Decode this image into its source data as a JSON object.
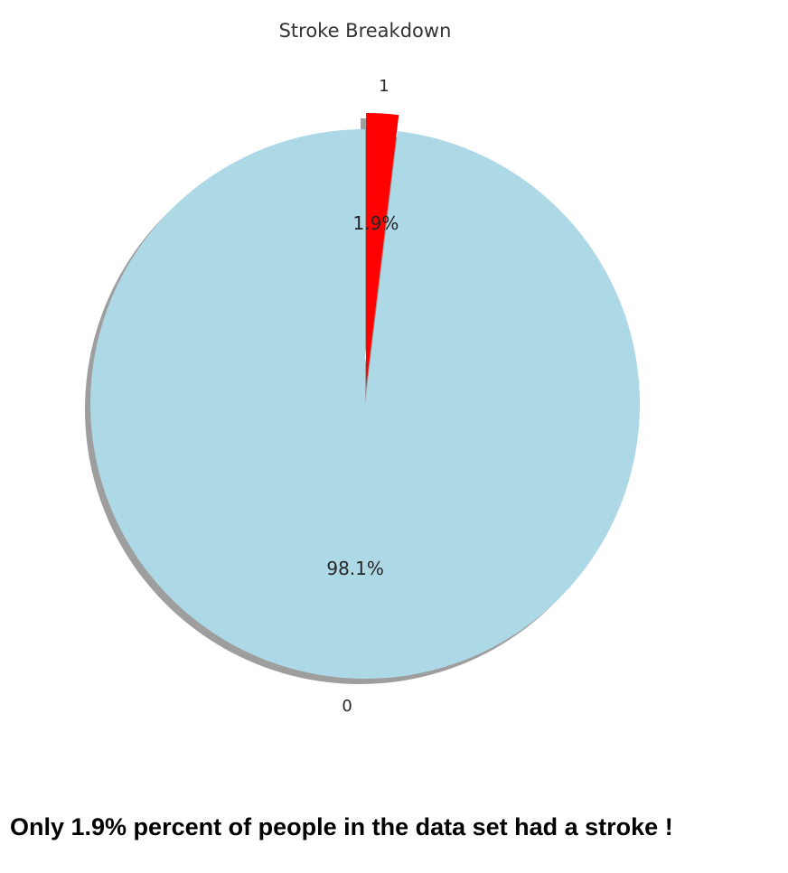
{
  "chart_data": {
    "type": "pie",
    "title": "Stroke Breakdown",
    "slices": [
      {
        "label": "0",
        "value": 98.1,
        "pct_label": "98.1%",
        "color": "#add8e6",
        "explode": false
      },
      {
        "label": "1",
        "value": 1.9,
        "pct_label": "1.9%",
        "color": "#ff0000",
        "explode": true
      }
    ],
    "shadow": true
  },
  "caption": "Only 1.9% percent of people in the data set had a stroke !"
}
